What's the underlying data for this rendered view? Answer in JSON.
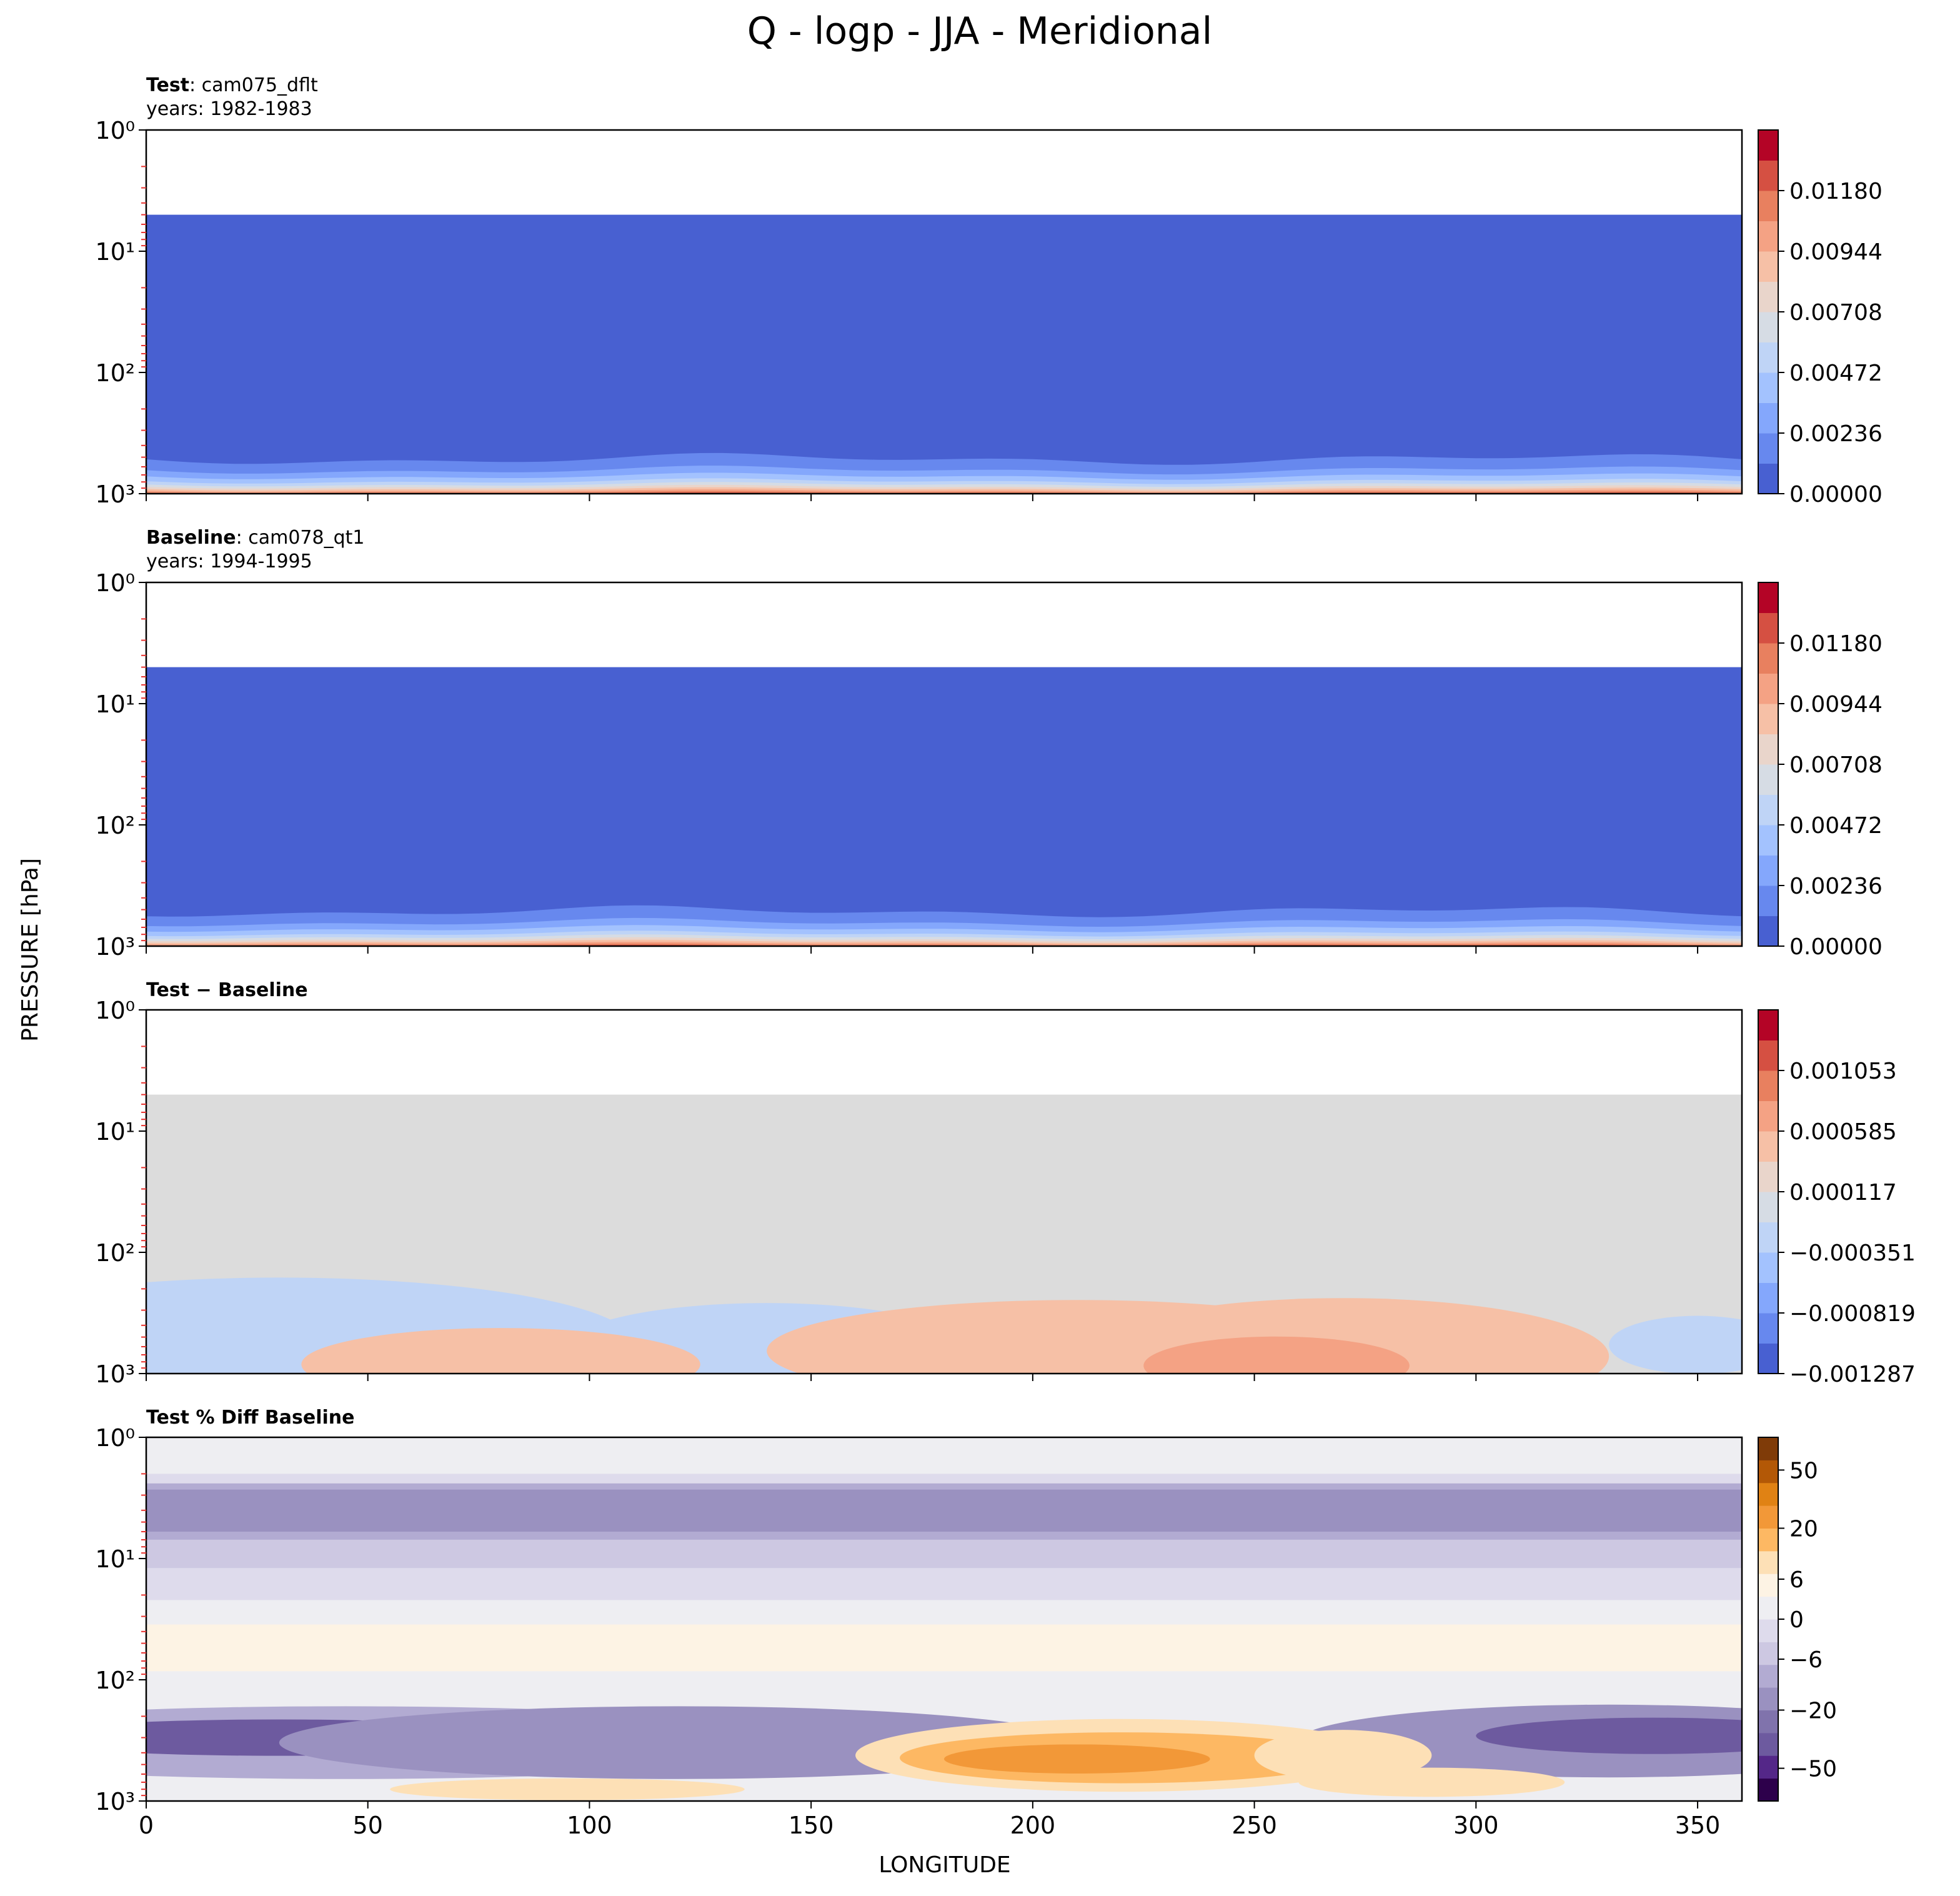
{
  "title": "Q - logp - JJA - Meridional",
  "ylabel": "PRESSURE [hPa]",
  "xlabel": "LONGITUDE",
  "panels": [
    {
      "label_bold": "Test",
      "label_rest": ": cam075_dflt",
      "years": "years: 1982-1983"
    },
    {
      "label_bold": "Baseline",
      "label_rest": ": cam078_qt1",
      "years": "years: 1994-1995"
    },
    {
      "label_bold": "Test − Baseline",
      "label_rest": "",
      "years": ""
    },
    {
      "label_bold": "Test % Diff Baseline",
      "label_rest": "",
      "years": ""
    }
  ],
  "colors": {
    "coolwarm": [
      "#4860d1",
      "#6788ee",
      "#84a7fc",
      "#a3c2fe",
      "#bfd4f6",
      "#d6dce4",
      "#e9d5cb",
      "#f6c0a6",
      "#f4a284",
      "#e8805f",
      "#d55042",
      "#b40426"
    ],
    "puor": [
      "#2d004b",
      "#542788",
      "#6d5a9f",
      "#8073ac",
      "#9a91c0",
      "#b2abd2",
      "#cdc8e2",
      "#dedbec",
      "#eeeef2",
      "#fdf3e4",
      "#fde0b6",
      "#fdb863",
      "#f29838",
      "#e08214",
      "#b35806",
      "#7f3b08"
    ],
    "mask": "#dcdcdc"
  },
  "chart_data": {
    "type": "contour",
    "x_axis": {
      "label": "LONGITUDE",
      "range": [
        0,
        360
      ],
      "ticks": [
        0,
        50,
        100,
        150,
        200,
        250,
        300,
        350
      ]
    },
    "y_axis": {
      "label": "PRESSURE [hPa]",
      "scale": "log",
      "inverted": true,
      "range": [
        1,
        1000
      ],
      "tick_labels": [
        "10⁰",
        "10¹",
        "10²",
        "10³"
      ]
    },
    "panels": [
      {
        "name": "Test",
        "case": "cam075_dflt",
        "years": "1982-1983",
        "colormap": "coolwarm",
        "colorbar_ticks": [
          "0.00000",
          "0.00236",
          "0.00472",
          "0.00708",
          "0.00944",
          "0.01180"
        ],
        "levels": [
          0.0,
          0.00118,
          0.00236,
          0.00354,
          0.00472,
          0.0059,
          0.00708,
          0.00826,
          0.00944,
          0.01062,
          0.0118,
          0.01298,
          0.01416
        ]
      },
      {
        "name": "Baseline",
        "case": "cam078_qt1",
        "years": "1994-1995",
        "colormap": "coolwarm",
        "colorbar_ticks": [
          "0.00000",
          "0.00236",
          "0.00472",
          "0.00708",
          "0.00944",
          "0.01180"
        ],
        "levels": [
          0.0,
          0.00118,
          0.00236,
          0.00354,
          0.00472,
          0.0059,
          0.00708,
          0.00826,
          0.00944,
          0.01062,
          0.0118,
          0.01298,
          0.01416
        ]
      },
      {
        "name": "Test − Baseline",
        "colormap": "coolwarm",
        "colorbar_ticks": [
          "−0.001287",
          "−0.000819",
          "−0.000351",
          "0.000117",
          "0.000585",
          "0.001053"
        ]
      },
      {
        "name": "Test % Diff Baseline",
        "colormap": "PuOr_r",
        "colorbar_ticks": [
          "−50",
          "−20",
          "−6",
          "0",
          "6",
          "20",
          "50"
        ]
      }
    ]
  }
}
